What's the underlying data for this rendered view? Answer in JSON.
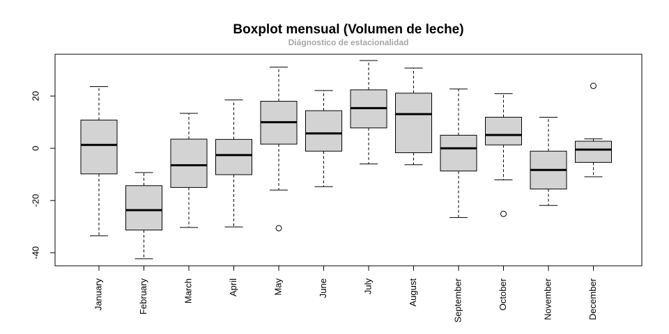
{
  "chart_data": {
    "type": "boxplot",
    "title": "Boxplot mensual (Volumen de leche)",
    "subtitle": "Diágnostico de estacionalidad",
    "xlabel": "",
    "ylabel": "",
    "ylim": [
      -45,
      36
    ],
    "yticks": [
      -40,
      -20,
      0,
      20
    ],
    "grid": false,
    "categories": [
      "January",
      "February",
      "March",
      "April",
      "May",
      "June",
      "July",
      "August",
      "September",
      "October",
      "November",
      "December"
    ],
    "boxes": [
      {
        "min": -33.5,
        "q1": -9.8,
        "median": 1.3,
        "q3": 10.8,
        "max": 23.6,
        "outliers": []
      },
      {
        "min": -42.3,
        "q1": -31.3,
        "median": -23.7,
        "q3": -14.3,
        "max": -9.3,
        "outliers": []
      },
      {
        "min": -30.3,
        "q1": -15.0,
        "median": -6.5,
        "q3": 3.5,
        "max": 13.4,
        "outliers": []
      },
      {
        "min": -30.1,
        "q1": -10.1,
        "median": -2.6,
        "q3": 3.4,
        "max": 18.5,
        "outliers": []
      },
      {
        "min": -16.0,
        "q1": 1.6,
        "median": 10.0,
        "q3": 18.0,
        "max": 31.1,
        "outliers": [
          -30.6
        ]
      },
      {
        "min": -14.7,
        "q1": -1.1,
        "median": 5.7,
        "q3": 14.4,
        "max": 22.1,
        "outliers": []
      },
      {
        "min": -6.0,
        "q1": 7.8,
        "median": 15.4,
        "q3": 22.4,
        "max": 33.6,
        "outliers": []
      },
      {
        "min": -6.3,
        "q1": -1.7,
        "median": 13.1,
        "q3": 21.1,
        "max": 30.7,
        "outliers": []
      },
      {
        "min": -26.5,
        "q1": -8.7,
        "median": 0.0,
        "q3": 5.0,
        "max": 22.7,
        "outliers": []
      },
      {
        "min": -12.1,
        "q1": 1.3,
        "median": 5.1,
        "q3": 11.9,
        "max": 20.9,
        "outliers": [
          -25.1
        ]
      },
      {
        "min": -21.9,
        "q1": -15.6,
        "median": -8.3,
        "q3": -1.1,
        "max": 11.9,
        "outliers": []
      },
      {
        "min": -10.9,
        "q1": -5.4,
        "median": -0.5,
        "q3": 2.7,
        "max": 3.6,
        "outliers": [
          23.9
        ]
      }
    ],
    "colors": {
      "box_fill": "#d3d3d3",
      "stroke": "#000000",
      "subtitle": "#a6a6a6"
    }
  }
}
